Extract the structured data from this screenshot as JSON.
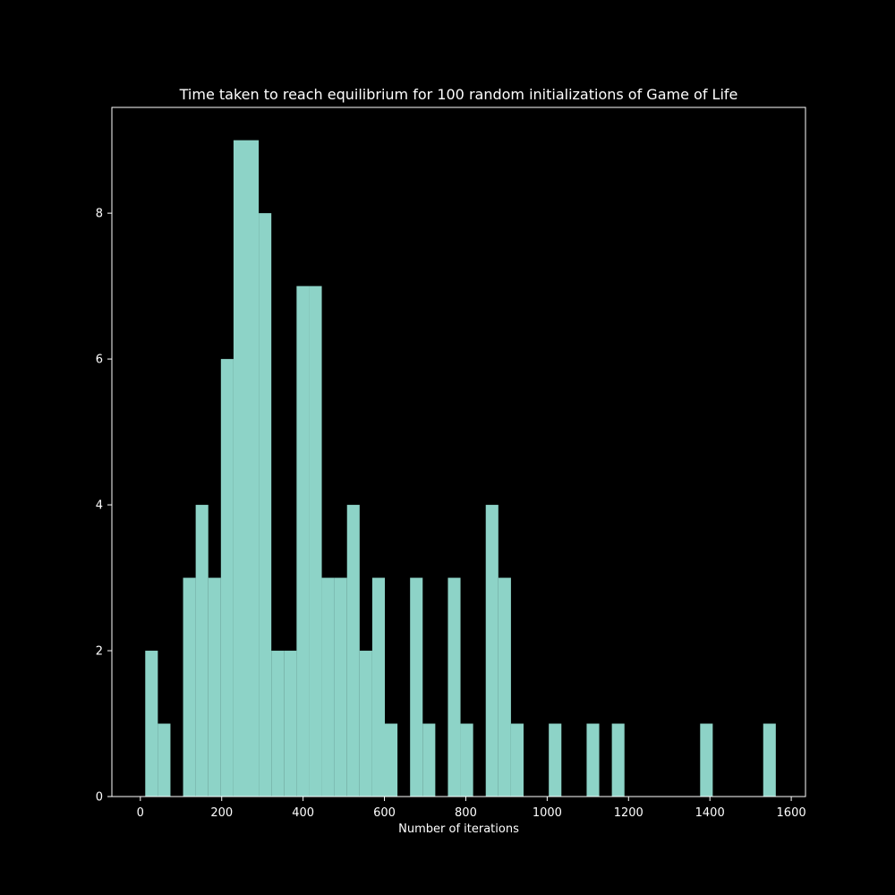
{
  "chart_data": {
    "type": "bar",
    "title": "Time taken to reach equilibrium for 100 random initializations of Game of Life",
    "xlabel": "Number of iterations",
    "ylabel": "",
    "xlim": [
      -70,
      1635
    ],
    "ylim": [
      0,
      9.45
    ],
    "x_ticks": [
      0,
      200,
      400,
      600,
      800,
      1000,
      1200,
      1400,
      1600
    ],
    "y_ticks": [
      0,
      2,
      4,
      6,
      8
    ],
    "grid": false,
    "bar_color": "#8dd3c7",
    "background_color": "#000000",
    "bins": [
      {
        "start": 12,
        "end": 43,
        "value": 2
      },
      {
        "start": 43,
        "end": 74,
        "value": 1
      },
      {
        "start": 105,
        "end": 136,
        "value": 3
      },
      {
        "start": 136,
        "end": 167,
        "value": 4
      },
      {
        "start": 167,
        "end": 198,
        "value": 3
      },
      {
        "start": 198,
        "end": 229,
        "value": 6
      },
      {
        "start": 229,
        "end": 260,
        "value": 9
      },
      {
        "start": 260,
        "end": 291,
        "value": 9
      },
      {
        "start": 291,
        "end": 322,
        "value": 8
      },
      {
        "start": 322,
        "end": 353,
        "value": 2
      },
      {
        "start": 353,
        "end": 384,
        "value": 2
      },
      {
        "start": 384,
        "end": 415,
        "value": 7
      },
      {
        "start": 415,
        "end": 446,
        "value": 7
      },
      {
        "start": 446,
        "end": 477,
        "value": 3
      },
      {
        "start": 477,
        "end": 508,
        "value": 3
      },
      {
        "start": 508,
        "end": 539,
        "value": 4
      },
      {
        "start": 539,
        "end": 570,
        "value": 2
      },
      {
        "start": 570,
        "end": 601,
        "value": 3
      },
      {
        "start": 601,
        "end": 632,
        "value": 1
      },
      {
        "start": 663,
        "end": 694,
        "value": 3
      },
      {
        "start": 694,
        "end": 725,
        "value": 1
      },
      {
        "start": 756,
        "end": 787,
        "value": 3
      },
      {
        "start": 787,
        "end": 818,
        "value": 1
      },
      {
        "start": 849,
        "end": 880,
        "value": 4
      },
      {
        "start": 880,
        "end": 911,
        "value": 3
      },
      {
        "start": 911,
        "end": 942,
        "value": 1
      },
      {
        "start": 1004,
        "end": 1035,
        "value": 1
      },
      {
        "start": 1097,
        "end": 1128,
        "value": 1
      },
      {
        "start": 1159,
        "end": 1190,
        "value": 1
      },
      {
        "start": 1376,
        "end": 1407,
        "value": 1
      },
      {
        "start": 1531,
        "end": 1562,
        "value": 1
      }
    ]
  }
}
